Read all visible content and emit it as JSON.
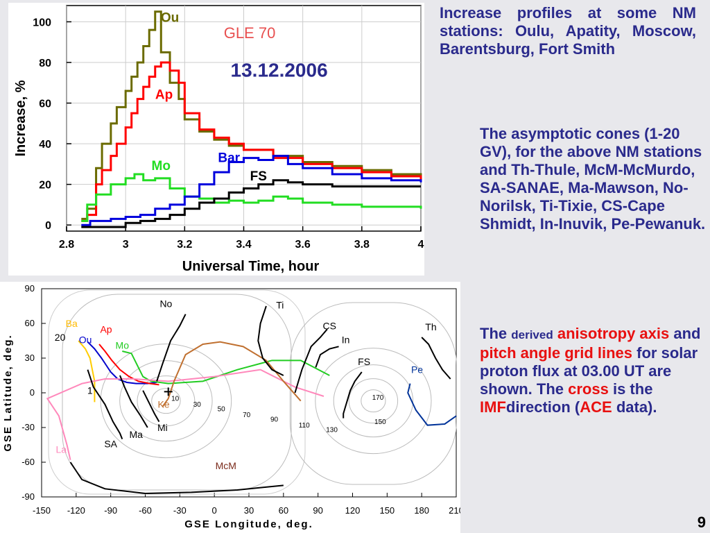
{
  "text": {
    "para1": "Increase profiles at some NM stations: Oulu, Apatity, Moscow, Barentsburg, Fort Smith",
    "para2": "The asymptotic cones (1-20 GV), for the above NM stations and Th-Thule, McM-McMurdo, SA-SANAE, Ma-Mawson, No-Norilsk, Ti-Tixie, CS-Cape Shmidt, In-Inuvik, Pe-Pewanuk.",
    "para3": {
      "the": "The",
      "derived": "derived",
      "anisotropy_axis": "anisotropy axis",
      "and": "and",
      "pitch_grid": "pitch angle grid lines",
      "mid": "for solar proton flux at 03.00 UT are shown.  The",
      "cross": "cross",
      "is_the": "is the",
      "imf": "IMF",
      "direction": "direction (",
      "ace": "ACE",
      "data_end": "data)."
    },
    "page_number": "9"
  },
  "colors": {
    "Ou": "#6b6b00",
    "Ap": "#ff0000",
    "Mo": "#22dd22",
    "Bar": "#0000dd",
    "FS": "#000000",
    "title_red": "#e85050",
    "date_blue": "#2a2a8c"
  },
  "chart_data": [
    {
      "type": "line",
      "annotations": [
        "GLE 70",
        "13.12.2006"
      ],
      "xlabel": "Universal Time, hour",
      "ylabel": "Increase, %",
      "xlim": [
        2.8,
        4.0
      ],
      "ylim": [
        -3,
        108
      ],
      "xticks": [
        "2.8",
        "3",
        "3.2",
        "3.4",
        "3.6",
        "3.8",
        "4"
      ],
      "xtick_values": [
        2.8,
        3.0,
        3.2,
        3.4,
        3.6,
        3.8,
        4.0
      ],
      "yticks": [
        "0",
        "20",
        "40",
        "60",
        "80",
        "100"
      ],
      "ytick_values": [
        0,
        20,
        40,
        60,
        80,
        100
      ],
      "series": [
        {
          "name": "Ou",
          "x": [
            2.85,
            2.87,
            2.9,
            2.92,
            2.95,
            2.97,
            3.0,
            3.02,
            3.04,
            3.06,
            3.08,
            3.1,
            3.12,
            3.15,
            3.18,
            3.2,
            3.25,
            3.3,
            3.35,
            3.4,
            3.5,
            3.6,
            3.7,
            3.8,
            3.9,
            4.0
          ],
          "y": [
            3,
            8,
            28,
            40,
            50,
            58,
            66,
            73,
            80,
            88,
            96,
            105,
            85,
            70,
            62,
            52,
            46,
            42,
            39,
            37,
            34,
            31,
            29,
            27,
            25,
            23
          ]
        },
        {
          "name": "Ap",
          "x": [
            2.85,
            2.87,
            2.9,
            2.92,
            2.95,
            2.97,
            3.0,
            3.02,
            3.04,
            3.06,
            3.08,
            3.1,
            3.12,
            3.15,
            3.18,
            3.2,
            3.25,
            3.3,
            3.35,
            3.4,
            3.5,
            3.6,
            3.7,
            3.8,
            3.9,
            4.0
          ],
          "y": [
            2,
            5,
            20,
            27,
            34,
            40,
            48,
            55,
            62,
            68,
            73,
            78,
            80,
            76,
            70,
            55,
            47,
            43,
            40,
            37,
            33,
            30,
            28,
            26,
            24,
            22
          ]
        },
        {
          "name": "Mo",
          "x": [
            2.85,
            2.87,
            2.9,
            2.95,
            3.0,
            3.03,
            3.06,
            3.1,
            3.15,
            3.2,
            3.25,
            3.3,
            3.35,
            3.4,
            3.45,
            3.5,
            3.55,
            3.6,
            3.7,
            3.8,
            3.9,
            4.0
          ],
          "y": [
            2,
            10,
            15,
            20,
            23,
            25,
            22,
            23,
            18,
            14,
            13,
            11,
            12,
            11,
            12,
            14,
            13,
            11,
            10,
            9,
            9,
            8
          ]
        },
        {
          "name": "Bar",
          "x": [
            2.85,
            2.88,
            2.95,
            3.0,
            3.05,
            3.1,
            3.15,
            3.2,
            3.25,
            3.3,
            3.35,
            3.4,
            3.45,
            3.5,
            3.55,
            3.6,
            3.7,
            3.8,
            3.9,
            4.0
          ],
          "y": [
            0,
            2,
            3,
            4,
            5,
            8,
            10,
            14,
            20,
            26,
            31,
            33,
            32,
            34,
            30,
            28,
            25,
            23,
            22,
            21
          ]
        },
        {
          "name": "FS",
          "x": [
            2.85,
            2.9,
            3.0,
            3.05,
            3.1,
            3.15,
            3.2,
            3.25,
            3.3,
            3.35,
            3.4,
            3.45,
            3.5,
            3.55,
            3.6,
            3.7,
            3.8,
            3.9,
            4.0
          ],
          "y": [
            -1,
            -1,
            1,
            2,
            3,
            5,
            8,
            11,
            13,
            16,
            18,
            20,
            22,
            21,
            20,
            19,
            19,
            19,
            19
          ]
        }
      ],
      "labels": [
        "Ou",
        "Ap",
        "Mo",
        "Bar",
        "FS"
      ]
    },
    {
      "type": "line",
      "xlabel": "GSE Longitude, deg.",
      "ylabel": "GSE Latitude, deg.",
      "xlim": [
        -150,
        210
      ],
      "ylim": [
        -90,
        90
      ],
      "xticks": [
        "-150",
        "-120",
        "-90",
        "-60",
        "-30",
        "0",
        "30",
        "60",
        "90",
        "120",
        "150",
        "180",
        "210"
      ],
      "xtick_values": [
        -150,
        -120,
        -90,
        -60,
        -30,
        0,
        30,
        60,
        90,
        120,
        150,
        180,
        210
      ],
      "yticks": [
        "90",
        "60",
        "30",
        "0",
        "-30",
        "-60",
        "-90"
      ],
      "ytick_values": [
        90,
        60,
        30,
        0,
        -30,
        -60,
        -90
      ],
      "grid_labels": [
        "10",
        "30",
        "50",
        "70",
        "90",
        "110",
        "130",
        "150",
        "170"
      ],
      "grid_label_positions": [
        {
          "x": -34,
          "y": -7
        },
        {
          "x": -15,
          "y": -12
        },
        {
          "x": 6,
          "y": -16
        },
        {
          "x": 28,
          "y": -21
        },
        {
          "x": 52,
          "y": -25
        },
        {
          "x": 78,
          "y": -30
        },
        {
          "x": 102,
          "y": -34
        },
        {
          "x": 144,
          "y": -27
        },
        {
          "x": 142,
          "y": -6
        }
      ],
      "anisotropy_center": {
        "x": -42,
        "y": -7
      },
      "pitch_center": {
        "x": 138,
        "y": -7
      },
      "cross": {
        "x": -40,
        "y": 1
      },
      "cones": [
        {
          "name": "Ba",
          "color": "#ffcc00",
          "x": [
            -118,
            -112,
            -108,
            -106,
            -104,
            -104
          ],
          "y": [
            45,
            38,
            30,
            20,
            10,
            -8
          ]
        },
        {
          "name": "Ou",
          "color": "#0000cc",
          "x": [
            -110,
            -104,
            -98,
            -94,
            -90,
            -84,
            -76,
            -68,
            -58,
            -50
          ],
          "y": [
            44,
            38,
            30,
            24,
            18,
            12,
            9,
            8,
            8,
            9
          ]
        },
        {
          "name": "Ap",
          "color": "#ff0000",
          "x": [
            -100,
            -95,
            -89,
            -82,
            -74,
            -66,
            -56,
            -48
          ],
          "y": [
            42,
            36,
            28,
            20,
            14,
            10,
            8,
            7
          ]
        },
        {
          "name": "Mo",
          "color": "#22cc22",
          "x": [
            -80,
            -72,
            -68,
            -62,
            -55,
            -40,
            -10,
            20,
            50,
            75,
            100
          ],
          "y": [
            36,
            34,
            26,
            14,
            10,
            8,
            10,
            20,
            28,
            28,
            15
          ]
        },
        {
          "name": "La",
          "color": "#ff88bb",
          "x": [
            -125,
            -128,
            -135,
            -145,
            -115,
            -95,
            -70,
            -40,
            0,
            40,
            70,
            95
          ],
          "y": [
            -58,
            -45,
            -20,
            -5,
            8,
            12,
            12,
            10,
            14,
            20,
            5,
            -3
          ]
        },
        {
          "name": "Ke",
          "color": "#c07030",
          "x": [
            -45,
            -40,
            -35,
            -25,
            -10,
            5,
            25,
            45,
            60,
            75
          ],
          "y": [
            -12,
            -5,
            10,
            33,
            42,
            44,
            40,
            28,
            10,
            -7
          ]
        },
        {
          "name": "No",
          "color": "#000000",
          "x": [
            -25,
            -30,
            -38,
            -45,
            -50
          ],
          "y": [
            68,
            58,
            45,
            25,
            10
          ]
        },
        {
          "name": "Ti",
          "color": "#000000",
          "x": [
            45,
            40,
            38,
            42,
            50,
            60
          ],
          "y": [
            75,
            60,
            45,
            30,
            20,
            15
          ]
        },
        {
          "name": "CS",
          "color": "#000000",
          "x": [
            98,
            92,
            84,
            76,
            70
          ],
          "y": [
            55,
            48,
            40,
            20,
            0
          ]
        },
        {
          "name": "In",
          "color": "#000000",
          "x": [
            108,
            100,
            92,
            88
          ],
          "y": [
            40,
            38,
            33,
            22
          ]
        },
        {
          "name": "FS",
          "color": "#000000",
          "x": [
            128,
            122,
            118,
            115,
            112,
            112
          ],
          "y": [
            18,
            10,
            2,
            -8,
            -18,
            -22
          ]
        },
        {
          "name": "Pe",
          "color": "#003399",
          "x": [
            170,
            168,
            175,
            185,
            200,
            210
          ],
          "y": [
            8,
            0,
            -15,
            -28,
            -27,
            -20
          ]
        },
        {
          "name": "Th",
          "color": "#000000",
          "x": [
            180,
            186,
            192,
            198,
            205
          ],
          "y": [
            48,
            42,
            30,
            20,
            12
          ]
        },
        {
          "name": "SA",
          "color": "#000000",
          "x": [
            -110,
            -105,
            -95,
            -88,
            -82,
            -80
          ],
          "y": [
            20,
            5,
            -10,
            -25,
            -35,
            -40
          ]
        },
        {
          "name": "Ma",
          "color": "#000000",
          "x": [
            -82,
            -78,
            -72,
            -64,
            -58
          ],
          "y": [
            15,
            5,
            -8,
            -20,
            -30
          ]
        },
        {
          "name": "Mi",
          "color": "#000000",
          "x": [
            -62,
            -56,
            -52,
            -48
          ],
          "y": [
            2,
            -10,
            -18,
            -25
          ]
        },
        {
          "name": "McM",
          "color": "#000000",
          "x": [
            -125,
            -115,
            -95,
            -60,
            -20,
            20,
            60
          ],
          "y": [
            -60,
            -75,
            -83,
            -87,
            -86,
            -84,
            -80
          ]
        }
      ],
      "labels": [
        "Ba",
        "Ou",
        "Ap",
        "Mo",
        "La",
        "Ke",
        "No",
        "Ti",
        "CS",
        "In",
        "FS",
        "Pe",
        "Th",
        "SA",
        "Ma",
        "Mi",
        "McM",
        "20",
        "1"
      ]
    }
  ]
}
